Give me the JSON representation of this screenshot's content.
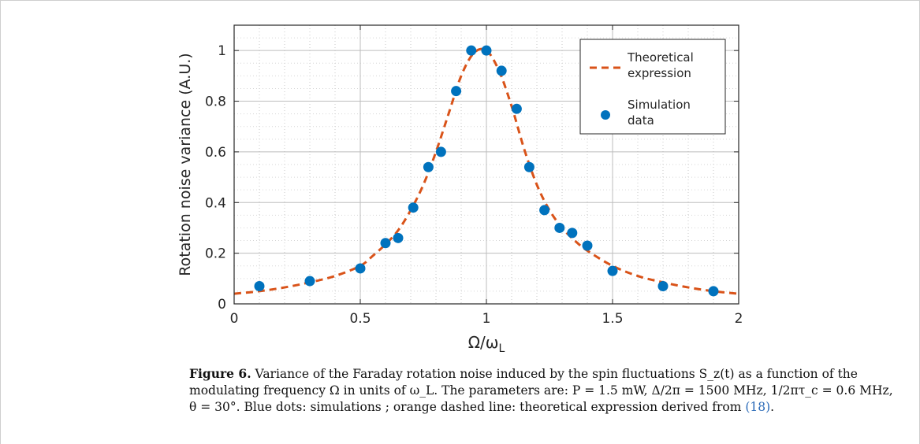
{
  "caption": {
    "label": "Figure 6.",
    "text": "Variance of the Faraday rotation noise induced by the spin fluctuations S_z(t) as a function of the modulating frequency Ω in units of ω_L. The parameters are: P = 1.5 mW, Δ/2π = 1500 MHz, 1/2πτ_c = 0.6 MHz, θ = 30°. Blue dots: simulations ; orange dashed line: theoretical expression derived from",
    "ref": "(18)",
    "end": "."
  },
  "chart_data": {
    "type": "scatter",
    "xlabel": "Ω/ω_L",
    "ylabel": "Rotation noise variance (A.U.)",
    "xlim": [
      0,
      2
    ],
    "ylim": [
      0,
      1.1
    ],
    "xticks": [
      "0",
      "0.5",
      "1",
      "1.5",
      "2"
    ],
    "yticks": [
      "0",
      "0.2",
      "0.4",
      "0.6",
      "0.8",
      "1"
    ],
    "grid": true,
    "legend_position": "top-right",
    "series": [
      {
        "name": "Theoretical expression",
        "kind": "dashed-line",
        "color": "#d95319",
        "x": [
          0,
          0.1,
          0.2,
          0.3,
          0.4,
          0.5,
          0.55,
          0.6,
          0.65,
          0.7,
          0.75,
          0.8,
          0.85,
          0.9,
          0.95,
          1.0,
          1.05,
          1.1,
          1.15,
          1.2,
          1.25,
          1.3,
          1.35,
          1.4,
          1.5,
          1.6,
          1.7,
          1.8,
          1.9,
          2.0
        ],
        "y": [
          0.04,
          0.05,
          0.065,
          0.085,
          0.11,
          0.15,
          0.19,
          0.235,
          0.29,
          0.37,
          0.47,
          0.6,
          0.75,
          0.9,
          0.99,
          1.0,
          0.92,
          0.78,
          0.61,
          0.47,
          0.37,
          0.3,
          0.25,
          0.21,
          0.15,
          0.11,
          0.085,
          0.065,
          0.05,
          0.04
        ]
      },
      {
        "name": "Simulation data",
        "kind": "dots",
        "color": "#0072bd",
        "x": [
          0.1,
          0.3,
          0.5,
          0.6,
          0.65,
          0.71,
          0.77,
          0.82,
          0.88,
          0.94,
          1.0,
          1.06,
          1.12,
          1.17,
          1.23,
          1.29,
          1.34,
          1.4,
          1.5,
          1.7,
          1.9
        ],
        "y": [
          0.07,
          0.09,
          0.14,
          0.24,
          0.26,
          0.38,
          0.54,
          0.6,
          0.84,
          1.0,
          1.0,
          0.92,
          0.77,
          0.54,
          0.37,
          0.3,
          0.28,
          0.23,
          0.13,
          0.07,
          0.05
        ]
      }
    ],
    "legend": [
      {
        "lines": [
          "Theoretical",
          "expression"
        ]
      },
      {
        "lines": [
          "Simulation",
          "data"
        ]
      }
    ]
  }
}
